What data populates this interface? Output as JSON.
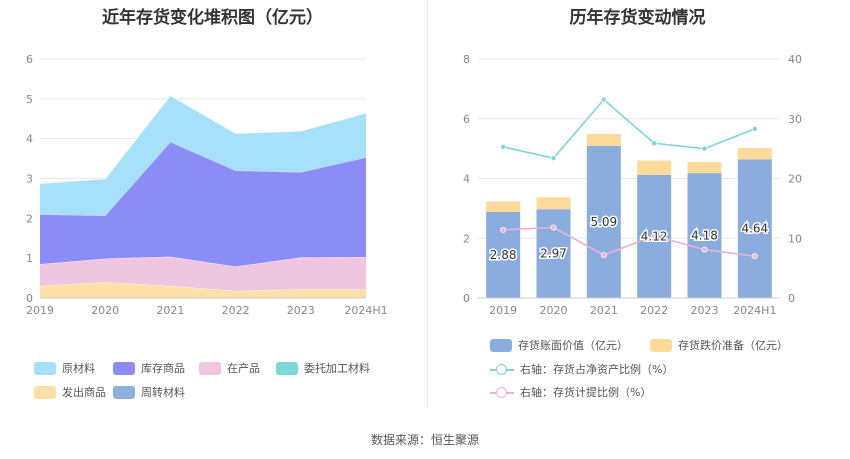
{
  "source_text": "数据来源：恒生聚源",
  "chart_data": [
    {
      "type": "area",
      "stacked": true,
      "title": "近年存货变化堆积图（亿元）",
      "categories": [
        "2019",
        "2020",
        "2021",
        "2022",
        "2023",
        "2024H1"
      ],
      "y_ticks": [
        "0",
        "1",
        "2",
        "3",
        "4",
        "5",
        "6"
      ],
      "ylim": [
        0,
        6
      ],
      "grid": true,
      "legend_position": "bottom",
      "series": [
        {
          "name": "原材料",
          "color": "#a6e0fb",
          "values": [
            0.77,
            0.92,
            1.16,
            0.93,
            1.03,
            1.11
          ]
        },
        {
          "name": "库存商品",
          "color": "#8c8cf6",
          "values": [
            1.25,
            1.08,
            2.88,
            2.41,
            2.14,
            2.5
          ]
        },
        {
          "name": "在产品",
          "color": "#efc6e0",
          "values": [
            0.55,
            0.59,
            0.74,
            0.61,
            0.8,
            0.81
          ]
        },
        {
          "name": "委托加工材料",
          "color": "#7fd8d8",
          "values": [
            0.0,
            0.0,
            0.0,
            0.0,
            0.0,
            0.0
          ]
        },
        {
          "name": "发出商品",
          "color": "#fde0a8",
          "values": [
            0.3,
            0.4,
            0.3,
            0.18,
            0.22,
            0.22
          ]
        },
        {
          "name": "周转材料",
          "color": "#8fb0de",
          "values": [
            0.0,
            0.0,
            0.0,
            0.0,
            0.0,
            0.0
          ]
        }
      ],
      "legend_order": [
        "原材料",
        "库存商品",
        "在产品",
        "委托加工材料",
        "发出商品",
        "周转材料"
      ]
    },
    {
      "type": "bar",
      "stacked": true,
      "title": "历年存货变动情况",
      "categories": [
        "2019",
        "2020",
        "2021",
        "2022",
        "2023",
        "2024H1"
      ],
      "y_left_ticks": [
        "0",
        "2",
        "4",
        "6",
        "8"
      ],
      "ylim_left": [
        0,
        8
      ],
      "y_right_ticks": [
        "0",
        "10",
        "20",
        "30",
        "40"
      ],
      "ylim_right": [
        0,
        40
      ],
      "grid": true,
      "legend_position": "bottom",
      "series": [
        {
          "name": "存货账面价值（亿元）",
          "color": "#8aadde",
          "values": [
            2.88,
            2.97,
            5.09,
            4.12,
            4.18,
            4.64
          ],
          "labels": [
            "2.88",
            "2.97",
            "5.09",
            "4.12",
            "4.18",
            "4.64"
          ]
        },
        {
          "name": "存货跌价准备（亿元）",
          "color": "#fdd99a",
          "values": [
            0.35,
            0.4,
            0.4,
            0.48,
            0.37,
            0.38
          ]
        }
      ],
      "lines": [
        {
          "name": "右轴：存货占净资产比例（%）",
          "color": "#7fd4d9",
          "axis": "right",
          "values": [
            25.3,
            23.4,
            33.2,
            25.9,
            25.0,
            28.3
          ]
        },
        {
          "name": "右轴：存货计提比例（%）",
          "color": "#eab0d8",
          "axis": "right",
          "values": [
            11.4,
            11.8,
            7.2,
            10.4,
            8.1,
            7.0
          ]
        }
      ]
    }
  ]
}
